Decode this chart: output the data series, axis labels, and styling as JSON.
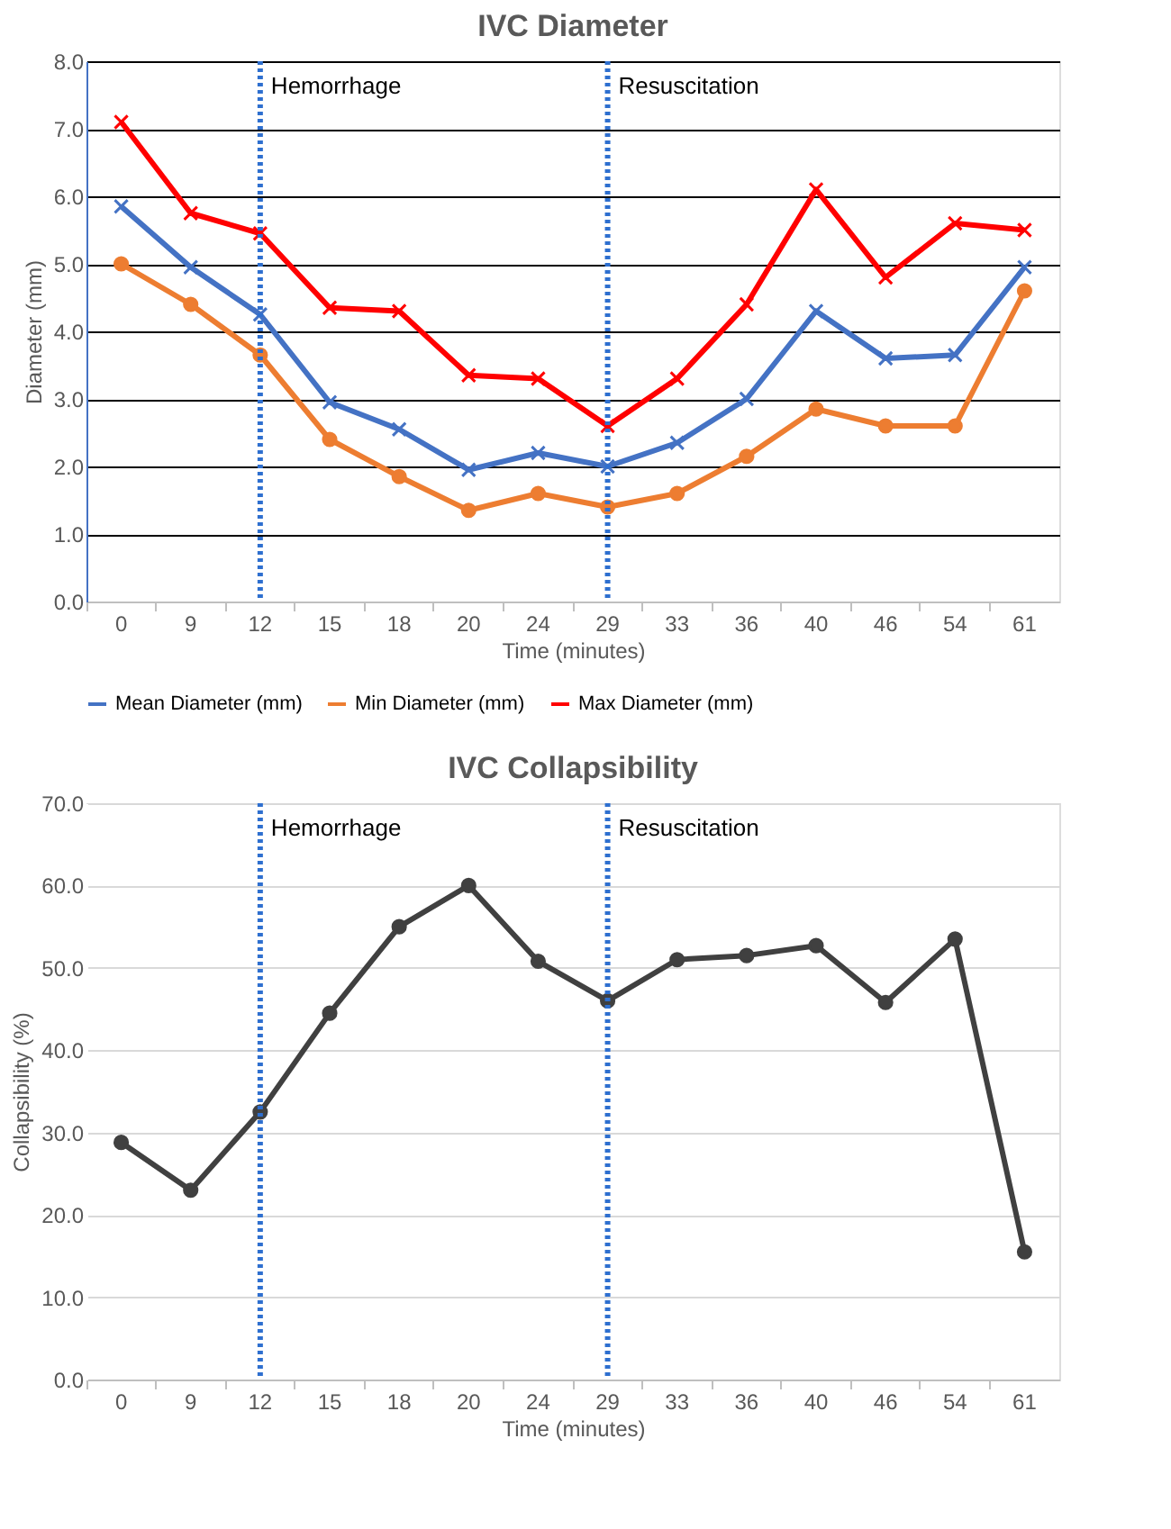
{
  "chart_data": [
    {
      "type": "line",
      "title": "IVC Diameter",
      "xlabel": "Time (minutes)",
      "ylabel": "Diameter (mm)",
      "categories": [
        "0",
        "9",
        "12",
        "15",
        "18",
        "20",
        "24",
        "29",
        "33",
        "36",
        "40",
        "46",
        "54",
        "61"
      ],
      "series": [
        {
          "name": "Mean Diameter (mm)",
          "color": "#4472c4",
          "marker": "cross",
          "values": [
            5.85,
            4.95,
            4.25,
            2.95,
            2.55,
            1.95,
            2.2,
            2.0,
            2.35,
            3.0,
            4.3,
            3.6,
            3.65,
            4.95
          ]
        },
        {
          "name": "Min Diameter (mm)",
          "color": "#ed7d31",
          "marker": "circle",
          "values": [
            5.0,
            4.4,
            3.65,
            2.4,
            1.85,
            1.35,
            1.6,
            1.4,
            1.6,
            2.15,
            2.85,
            2.6,
            2.6,
            4.6
          ]
        },
        {
          "name": "Max Diameter (mm)",
          "color": "#ff0000",
          "marker": "cross",
          "values": [
            7.1,
            5.75,
            5.45,
            4.35,
            4.3,
            3.35,
            3.3,
            2.6,
            3.3,
            4.4,
            6.1,
            4.8,
            5.6,
            5.5
          ]
        }
      ],
      "ylim": [
        0,
        8
      ],
      "yticks": [
        {
          "value": 0,
          "label": "0.0"
        },
        {
          "value": 1,
          "label": "1.0"
        },
        {
          "value": 2,
          "label": "2.0"
        },
        {
          "value": 3,
          "label": "3.0"
        },
        {
          "value": 4,
          "label": "4.0"
        },
        {
          "value": 5,
          "label": "5.0"
        },
        {
          "value": 6,
          "label": "6.0"
        },
        {
          "value": 7,
          "label": "7.0"
        },
        {
          "value": 8,
          "label": "8.0"
        }
      ],
      "grid": "y",
      "legend": "bottom",
      "ref_lines": [
        {
          "axis": "x",
          "value": "12",
          "label": "Hemorrhage",
          "color": "#2e6fcf",
          "line_style": "dotted"
        },
        {
          "axis": "x",
          "value": "29",
          "label": "Resuscitation",
          "color": "#2e6fcf",
          "line_style": "dotted"
        }
      ]
    },
    {
      "type": "line",
      "title": "IVC Collapsibility",
      "xlabel": "Time (minutes)",
      "ylabel": "Collapsibility (%)",
      "categories": [
        "0",
        "9",
        "12",
        "15",
        "18",
        "20",
        "24",
        "29",
        "33",
        "36",
        "40",
        "46",
        "54",
        "61"
      ],
      "series": [
        {
          "color": "#404040",
          "marker": "circle",
          "values": [
            28.8,
            23.0,
            32.5,
            44.5,
            55.0,
            60.0,
            50.8,
            46.0,
            51.0,
            51.5,
            52.7,
            45.8,
            53.5,
            15.5
          ]
        }
      ],
      "ylim": [
        0,
        70
      ],
      "yticks": [
        {
          "value": 0,
          "label": "0.0"
        },
        {
          "value": 10,
          "label": "10.0"
        },
        {
          "value": 20,
          "label": "20.0"
        },
        {
          "value": 30,
          "label": "30.0"
        },
        {
          "value": 40,
          "label": "40.0"
        },
        {
          "value": 50,
          "label": "50.0"
        },
        {
          "value": 60,
          "label": "60.0"
        },
        {
          "value": 70,
          "label": "70.0"
        }
      ],
      "grid": "y",
      "legend": false,
      "ref_lines": [
        {
          "axis": "x",
          "value": "12",
          "label": "Hemorrhage",
          "color": "#2e6fcf",
          "line_style": "dotted"
        },
        {
          "axis": "x",
          "value": "29",
          "label": "Resuscitation",
          "color": "#2e6fcf",
          "line_style": "dotted"
        }
      ]
    }
  ]
}
